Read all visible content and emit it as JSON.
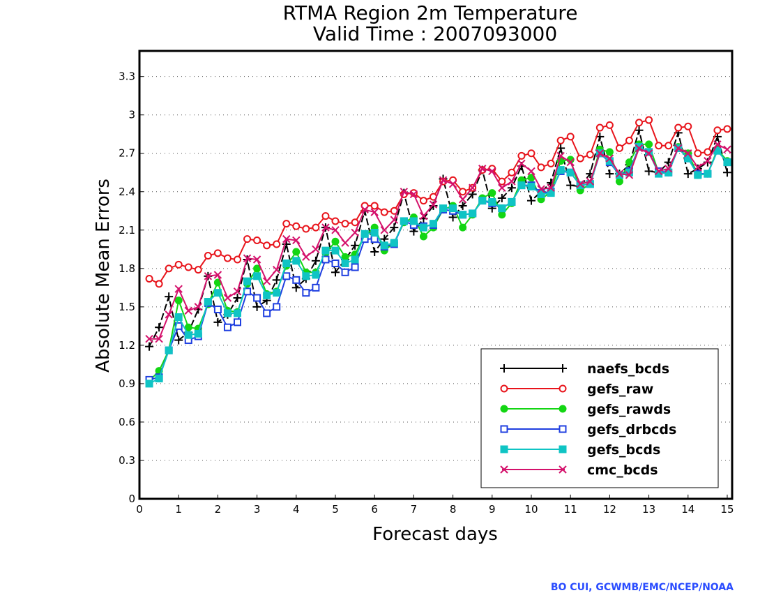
{
  "chart_data": {
    "type": "line",
    "title": "RTMA Region 2m Temperature",
    "subtitle": "Valid Time : 2007093000",
    "xlabel": "Forecast days",
    "ylabel": "Absolute Mean Errors",
    "xlim": [
      0,
      15.125
    ],
    "ylim": [
      0,
      3.5
    ],
    "xticks": [
      0,
      1,
      2,
      3,
      4,
      5,
      6,
      7,
      8,
      9,
      10,
      11,
      12,
      13,
      14,
      15
    ],
    "yticks": [
      "0",
      "0.3",
      "0.6",
      "0.9",
      "1.2",
      "1.5",
      "1.8",
      "2.1",
      "2.4",
      "2.7",
      "3",
      "3.3"
    ],
    "ytick_values": [
      0,
      0.3,
      0.6,
      0.9,
      1.2,
      1.5,
      1.8,
      2.1,
      2.4,
      2.7,
      3.0,
      3.3
    ],
    "grid": "horizontal dotted",
    "legend_position": "bottom-right",
    "x": [
      0.25,
      0.5,
      0.75,
      1.0,
      1.25,
      1.5,
      1.75,
      2.0,
      2.25,
      2.5,
      2.75,
      3.0,
      3.25,
      3.5,
      3.75,
      4.0,
      4.25,
      4.5,
      4.75,
      5.0,
      5.25,
      5.5,
      5.75,
      6.0,
      6.25,
      6.5,
      6.75,
      7.0,
      7.25,
      7.5,
      7.75,
      8.0,
      8.25,
      8.5,
      8.75,
      9.0,
      9.25,
      9.5,
      9.75,
      10.0,
      10.25,
      10.5,
      10.75,
      11.0,
      11.25,
      11.5,
      11.75,
      12.0,
      12.25,
      12.5,
      12.75,
      13.0,
      13.25,
      13.5,
      13.75,
      14.0,
      14.25,
      14.5,
      14.75,
      15.0
    ],
    "series": [
      {
        "name": "naefs_bcds",
        "color": "#000000",
        "marker": "plus",
        "dashed": true,
        "values": [
          1.19,
          1.34,
          1.58,
          1.24,
          1.3,
          1.48,
          1.74,
          1.38,
          1.44,
          1.57,
          1.87,
          1.5,
          1.55,
          1.71,
          1.99,
          1.65,
          1.72,
          1.86,
          2.12,
          1.77,
          1.87,
          1.98,
          2.25,
          1.93,
          2.03,
          2.12,
          2.39,
          2.09,
          2.19,
          2.29,
          2.5,
          2.2,
          2.29,
          2.38,
          2.57,
          2.27,
          2.35,
          2.43,
          2.6,
          2.33,
          2.4,
          2.47,
          2.74,
          2.45,
          2.44,
          2.54,
          2.83,
          2.54,
          2.54,
          2.61,
          2.88,
          2.56,
          2.55,
          2.63,
          2.86,
          2.54,
          2.58,
          2.63,
          2.83,
          2.55
        ]
      },
      {
        "name": "gefs_raw",
        "color": "#e8141b",
        "marker": "circle-open",
        "values": [
          1.72,
          1.68,
          1.8,
          1.83,
          1.81,
          1.79,
          1.9,
          1.92,
          1.88,
          1.87,
          2.03,
          2.02,
          1.98,
          1.99,
          2.15,
          2.13,
          2.11,
          2.12,
          2.21,
          2.17,
          2.15,
          2.16,
          2.29,
          2.29,
          2.24,
          2.25,
          2.38,
          2.39,
          2.33,
          2.36,
          2.48,
          2.49,
          2.4,
          2.43,
          2.57,
          2.58,
          2.48,
          2.55,
          2.68,
          2.7,
          2.59,
          2.62,
          2.8,
          2.83,
          2.66,
          2.69,
          2.9,
          2.92,
          2.74,
          2.8,
          2.94,
          2.96,
          2.76,
          2.76,
          2.9,
          2.91,
          2.7,
          2.71,
          2.88,
          2.89
        ]
      },
      {
        "name": "gefs_rawds",
        "color": "#13d613",
        "marker": "circle-filled",
        "values": [
          0.92,
          1.0,
          1.16,
          1.55,
          1.34,
          1.33,
          1.52,
          1.69,
          1.47,
          1.46,
          1.68,
          1.8,
          1.6,
          1.62,
          1.82,
          1.93,
          1.77,
          1.77,
          1.92,
          2.01,
          1.89,
          1.91,
          2.06,
          2.12,
          1.94,
          2.0,
          2.16,
          2.2,
          2.05,
          2.12,
          2.26,
          2.29,
          2.12,
          2.22,
          2.35,
          2.39,
          2.22,
          2.31,
          2.49,
          2.51,
          2.34,
          2.4,
          2.64,
          2.65,
          2.41,
          2.46,
          2.73,
          2.71,
          2.48,
          2.63,
          2.77,
          2.77,
          2.55,
          2.55,
          2.75,
          2.7,
          2.53,
          2.54,
          2.73,
          2.64
        ]
      },
      {
        "name": "gefs_drbcds",
        "color": "#1f3fe0",
        "marker": "square-open",
        "values": [
          0.93,
          0.95,
          1.16,
          1.35,
          1.24,
          1.27,
          1.53,
          1.48,
          1.34,
          1.38,
          1.62,
          1.57,
          1.45,
          1.5,
          1.74,
          1.71,
          1.61,
          1.65,
          1.87,
          1.84,
          1.77,
          1.81,
          2.03,
          2.03,
          1.97,
          1.99,
          2.17,
          2.14,
          2.13,
          2.14,
          2.26,
          2.25,
          2.22,
          2.23,
          2.33,
          2.31,
          2.27,
          2.32,
          2.45,
          2.45,
          2.39,
          2.4,
          2.56,
          2.55,
          2.45,
          2.46,
          2.7,
          2.63,
          2.53,
          2.56,
          2.75,
          2.71,
          2.56,
          2.55,
          2.74,
          2.66,
          2.54,
          2.54,
          2.72,
          2.63
        ]
      },
      {
        "name": "gefs_bcds",
        "color": "#0fc4c4",
        "marker": "square-filled",
        "values": [
          0.9,
          0.94,
          1.16,
          1.42,
          1.28,
          1.29,
          1.54,
          1.61,
          1.45,
          1.45,
          1.7,
          1.74,
          1.59,
          1.61,
          1.84,
          1.86,
          1.74,
          1.75,
          1.94,
          1.94,
          1.84,
          1.87,
          2.07,
          2.08,
          1.98,
          2.0,
          2.17,
          2.17,
          2.12,
          2.15,
          2.27,
          2.27,
          2.22,
          2.23,
          2.33,
          2.32,
          2.27,
          2.32,
          2.45,
          2.44,
          2.38,
          2.39,
          2.57,
          2.55,
          2.45,
          2.46,
          2.7,
          2.64,
          2.53,
          2.55,
          2.75,
          2.71,
          2.54,
          2.55,
          2.74,
          2.66,
          2.53,
          2.54,
          2.72,
          2.63
        ]
      },
      {
        "name": "cmc_bcds",
        "color": "#d4116b",
        "marker": "x",
        "values": [
          1.25,
          1.25,
          1.44,
          1.64,
          1.47,
          1.5,
          1.74,
          1.75,
          1.57,
          1.62,
          1.88,
          1.87,
          1.7,
          1.79,
          2.03,
          2.02,
          1.89,
          1.95,
          2.12,
          2.1,
          2.0,
          2.08,
          2.26,
          2.24,
          2.1,
          2.18,
          2.4,
          2.38,
          2.21,
          2.3,
          2.49,
          2.46,
          2.34,
          2.43,
          2.58,
          2.56,
          2.43,
          2.48,
          2.62,
          2.56,
          2.42,
          2.43,
          2.68,
          2.63,
          2.46,
          2.48,
          2.7,
          2.66,
          2.54,
          2.53,
          2.74,
          2.7,
          2.56,
          2.58,
          2.74,
          2.7,
          2.59,
          2.64,
          2.77,
          2.73
        ]
      }
    ]
  },
  "credit": "BO CUI, GCWMB/EMC/NCEP/NOAA"
}
